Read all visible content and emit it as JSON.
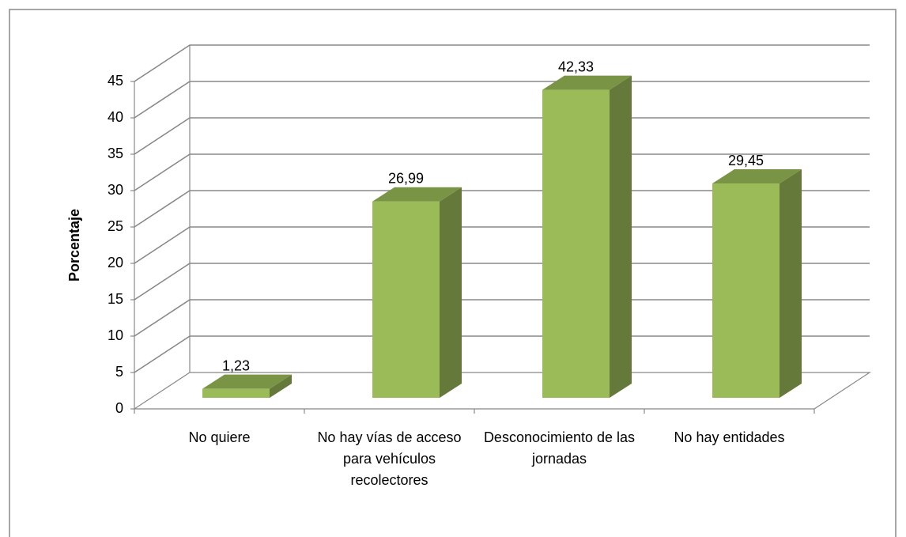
{
  "chart_data": {
    "type": "bar3d",
    "y_label": "Porcentaje",
    "categories": [
      "No quiere",
      "No hay vías de acceso para vehículos recolectores",
      "Desconocimiento de las jornadas",
      "No hay entidades"
    ],
    "values": [
      1.23,
      26.99,
      42.33,
      29.45
    ],
    "value_labels": [
      "1,23",
      "26,99",
      "42,33",
      "29,45"
    ],
    "color": "#9bbb59",
    "ylim": [
      0,
      45
    ],
    "yticks": [
      0,
      5,
      10,
      15,
      20,
      25,
      30,
      35,
      40,
      45
    ],
    "grid": true
  }
}
